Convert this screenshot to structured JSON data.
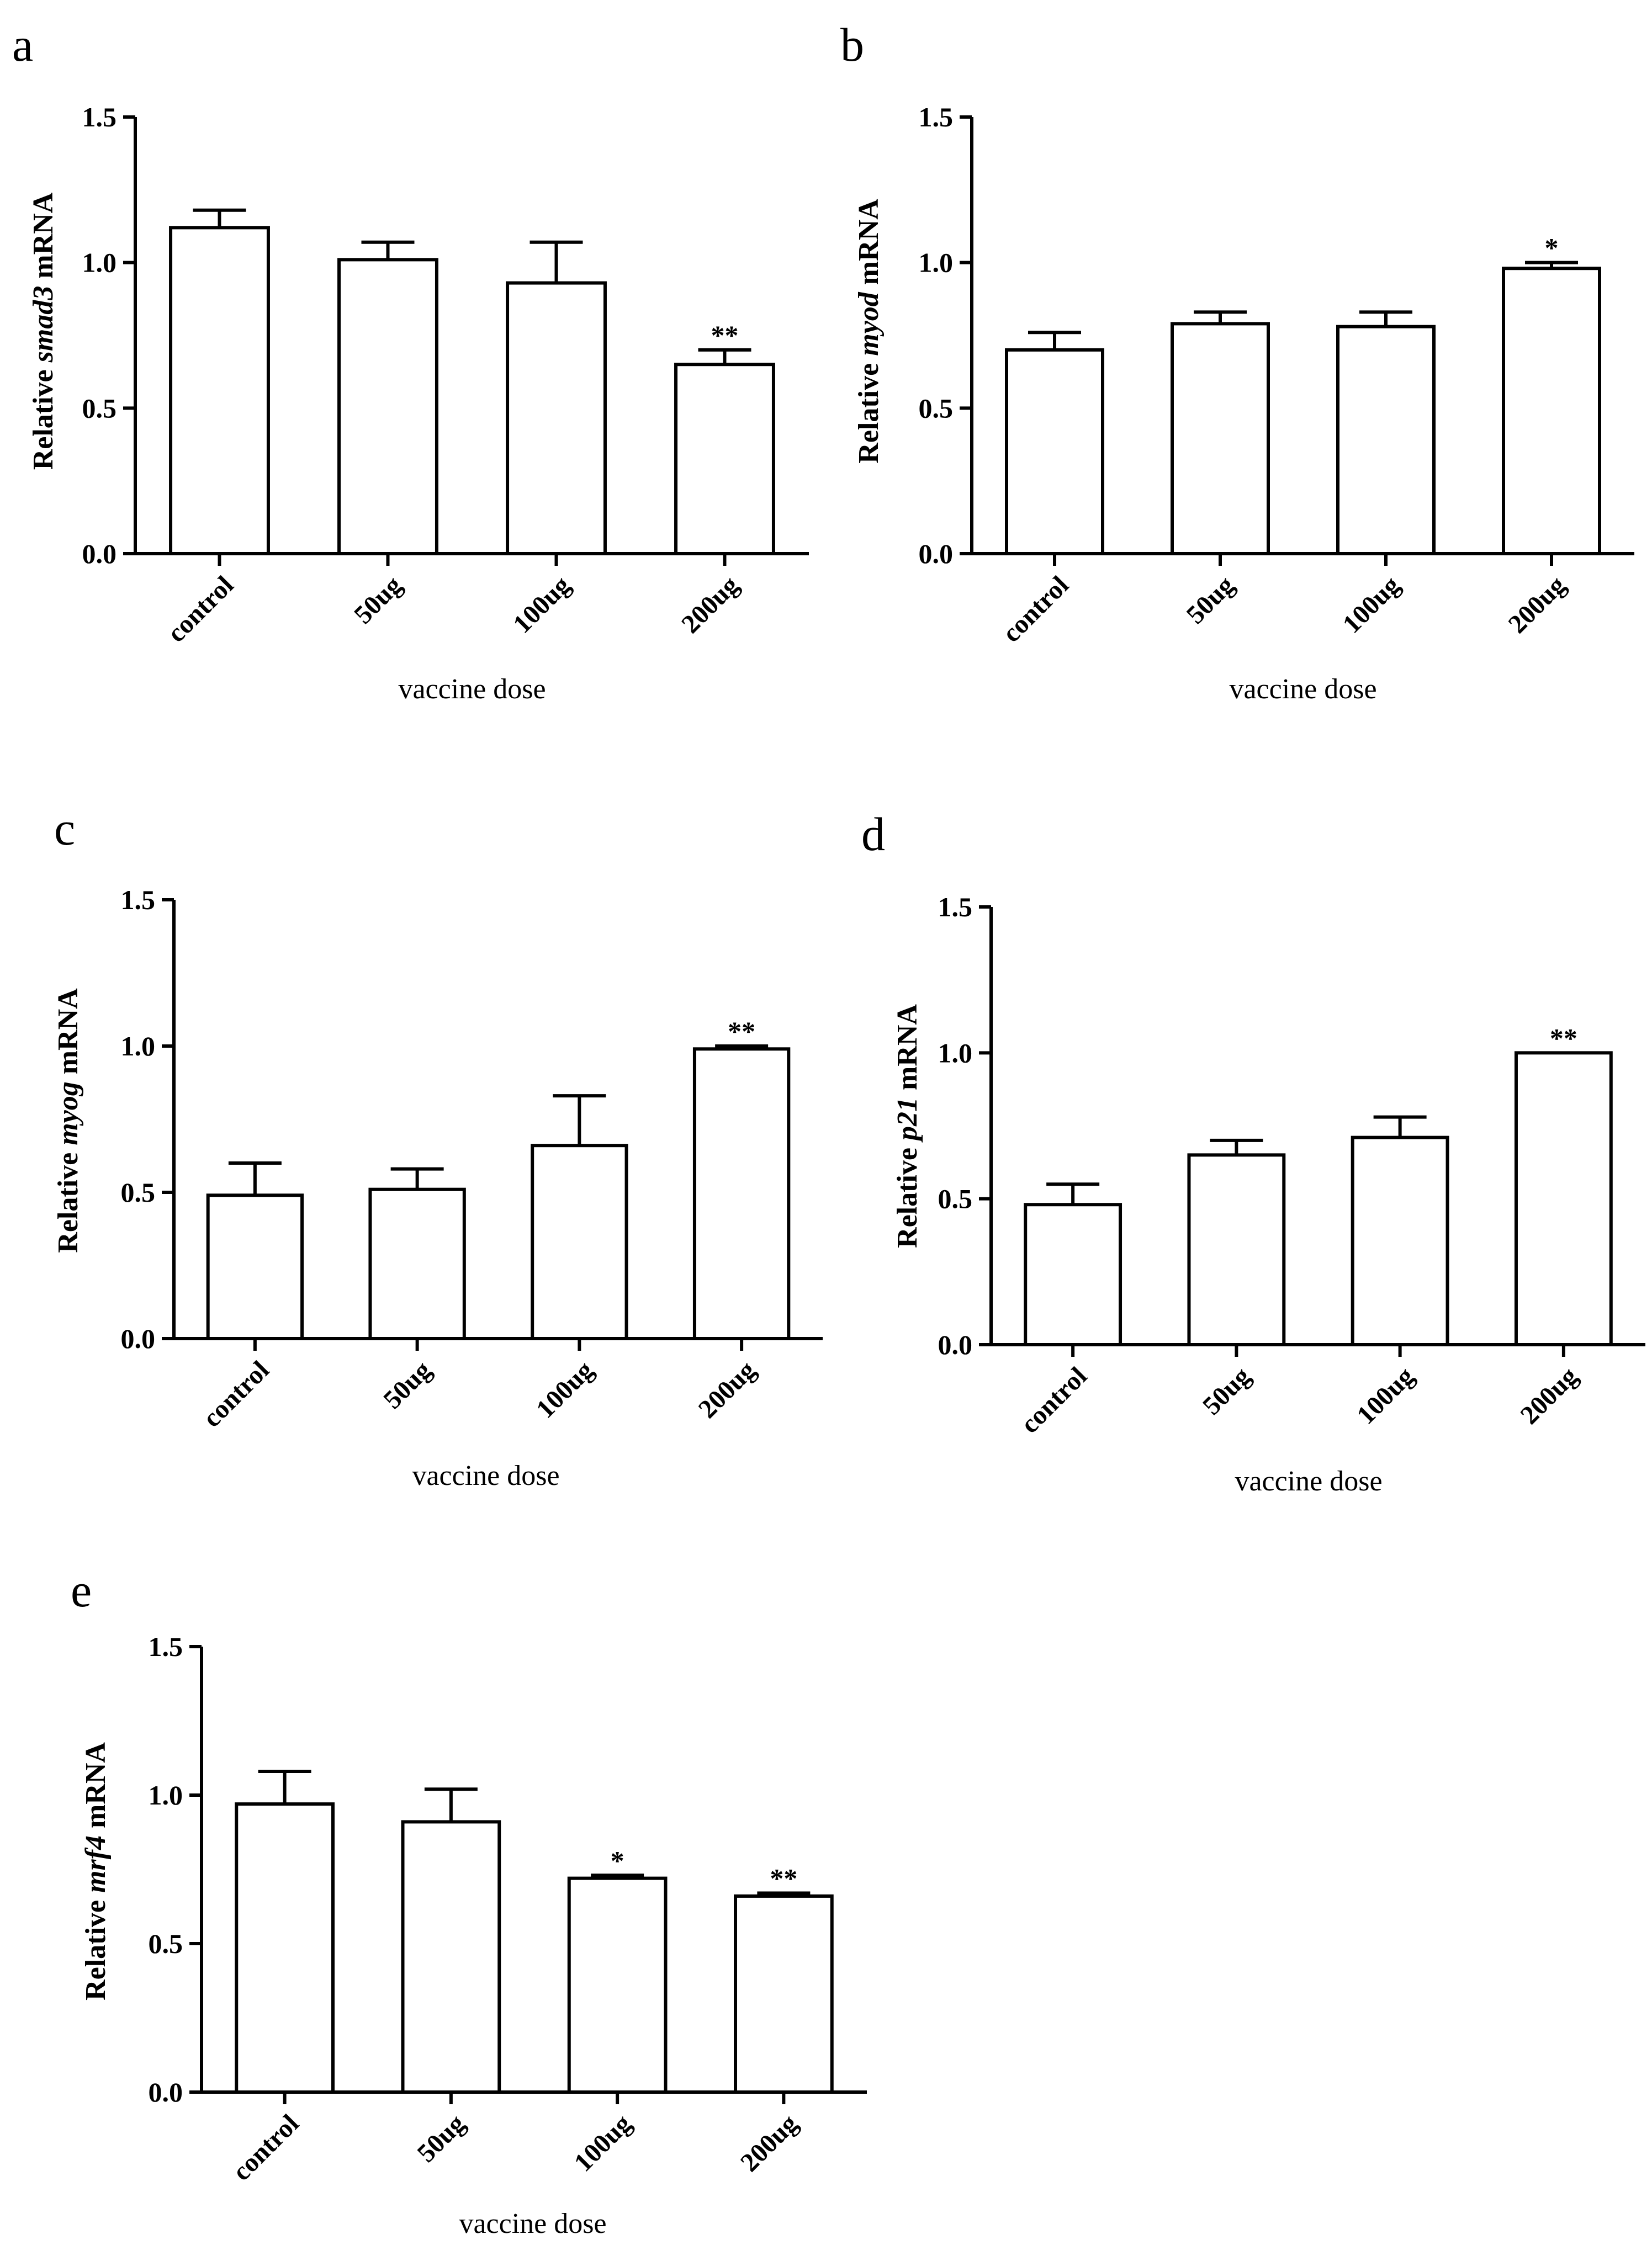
{
  "chart_data": [
    {
      "type": "bar",
      "panel": "a",
      "ylabel_prefix": "Relative ",
      "ylabel_gene": "smad3",
      "ylabel_suffix": " mRNA",
      "xlabel": "vaccine dose",
      "categories": [
        "control",
        "50ug",
        "100ug",
        "200ug"
      ],
      "values": [
        1.12,
        1.01,
        0.93,
        0.65
      ],
      "errors": [
        0.06,
        0.06,
        0.14,
        0.05
      ],
      "significance": [
        "",
        "",
        "",
        "**"
      ],
      "ylim": [
        0,
        1.5
      ],
      "yticks": [
        "0.0",
        "0.5",
        "1.0",
        "1.5"
      ]
    },
    {
      "type": "bar",
      "panel": "b",
      "ylabel_prefix": "Relative ",
      "ylabel_gene": "myod",
      "ylabel_suffix": " mRNA",
      "xlabel": "vaccine dose",
      "categories": [
        "control",
        "50ug",
        "100ug",
        "200ug"
      ],
      "values": [
        0.7,
        0.79,
        0.78,
        0.98
      ],
      "errors": [
        0.06,
        0.04,
        0.05,
        0.02
      ],
      "significance": [
        "",
        "",
        "",
        "*"
      ],
      "ylim": [
        0,
        1.5
      ],
      "yticks": [
        "0.0",
        "0.5",
        "1.0",
        "1.5"
      ]
    },
    {
      "type": "bar",
      "panel": "c",
      "ylabel_prefix": "Relative ",
      "ylabel_gene": "myog",
      "ylabel_suffix": " mRNA",
      "xlabel": "vaccine dose",
      "categories": [
        "control",
        "50ug",
        "100ug",
        "200ug"
      ],
      "values": [
        0.49,
        0.51,
        0.66,
        0.99
      ],
      "errors": [
        0.11,
        0.07,
        0.17,
        0.01
      ],
      "significance": [
        "",
        "",
        "",
        "**"
      ],
      "ylim": [
        0,
        1.5
      ],
      "yticks": [
        "0.0",
        "0.5",
        "1.0",
        "1.5"
      ]
    },
    {
      "type": "bar",
      "panel": "d",
      "ylabel_prefix": "Relative ",
      "ylabel_gene": "p21",
      "ylabel_suffix": " mRNA",
      "xlabel": "vaccine dose",
      "categories": [
        "control",
        "50ug",
        "100ug",
        "200ug"
      ],
      "values": [
        0.48,
        0.65,
        0.71,
        1.0
      ],
      "errors": [
        0.07,
        0.05,
        0.07,
        0.0
      ],
      "significance": [
        "",
        "",
        "",
        "**"
      ],
      "ylim": [
        0,
        1.5
      ],
      "yticks": [
        "0.0",
        "0.5",
        "1.0",
        "1.5"
      ]
    },
    {
      "type": "bar",
      "panel": "e",
      "ylabel_prefix": "Relative ",
      "ylabel_gene": "mrf4",
      "ylabel_suffix": " mRNA",
      "xlabel": "vaccine dose",
      "categories": [
        "control",
        "50ug",
        "100ug",
        "200ug"
      ],
      "values": [
        0.97,
        0.91,
        0.72,
        0.66
      ],
      "errors": [
        0.11,
        0.11,
        0.01,
        0.01
      ],
      "significance": [
        "",
        "",
        "*",
        "**"
      ],
      "ylim": [
        0,
        1.5
      ],
      "yticks": [
        "0.0",
        "0.5",
        "1.0",
        "1.5"
      ]
    }
  ]
}
